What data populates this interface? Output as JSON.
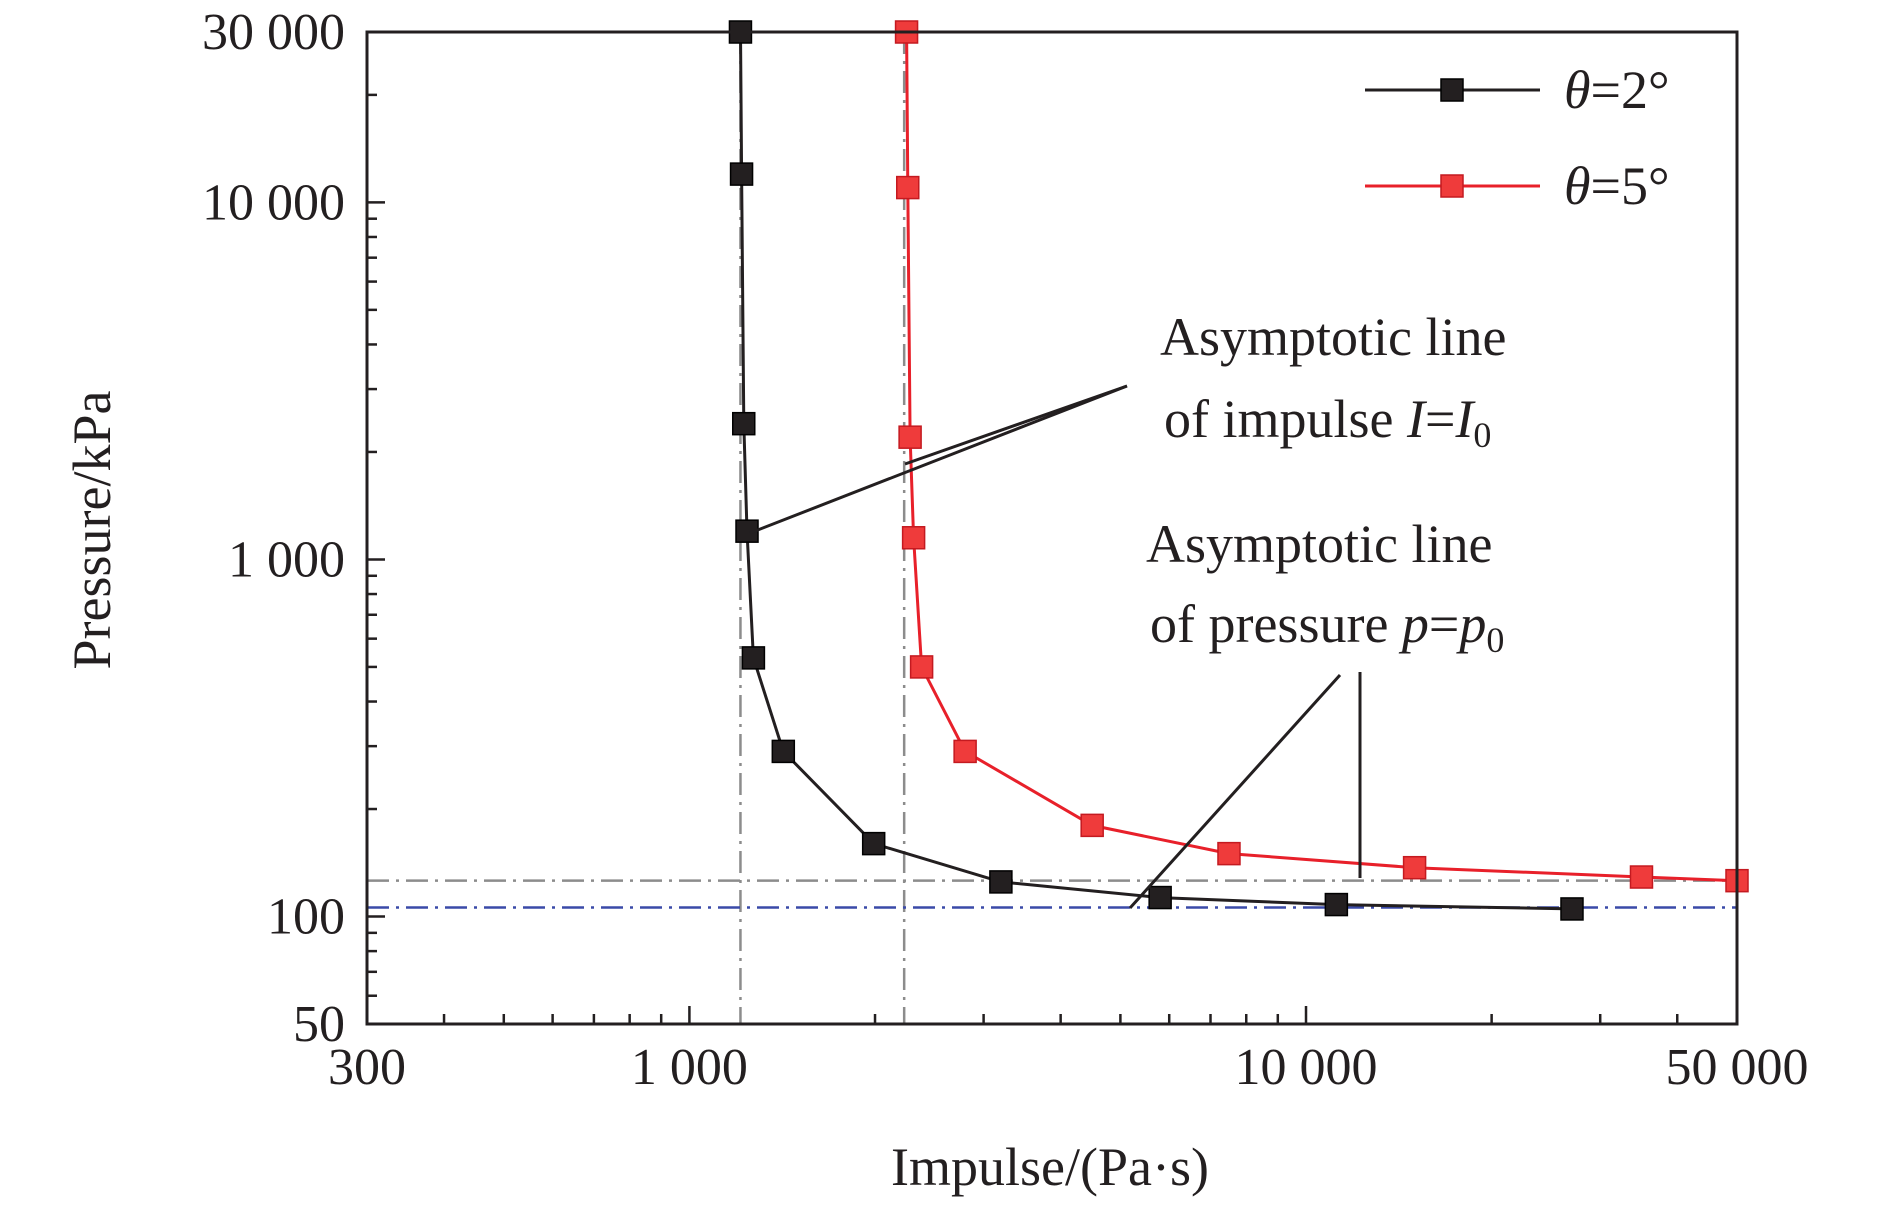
{
  "colors": {
    "series_theta2": "#231f20",
    "series_theta5": "#e8202a",
    "series_theta5_marker": "#ef3b3b",
    "asymptote_gray": "#8c8c8c",
    "asymptote_blue": "#3a4aa8",
    "axis": "#231f20"
  },
  "icons": {
    "legend_theta2": "black-square-marker-line",
    "legend_theta5": "red-square-marker-line"
  },
  "chart_data": {
    "type": "line",
    "title": "",
    "xlabel": "Impulse/(Pa·s)",
    "ylabel": "Pressure/kPa",
    "x_scale": "log",
    "y_scale": "log",
    "xlim": [
      300,
      50000
    ],
    "ylim": [
      50,
      30000
    ],
    "x_ticks": [
      300,
      1000,
      10000,
      50000
    ],
    "x_tick_labels": [
      "300",
      "1 000",
      "10 000",
      "50 000"
    ],
    "y_ticks": [
      50,
      100,
      1000,
      10000,
      30000
    ],
    "y_tick_labels": [
      "50",
      "100",
      "1 000",
      "10 000",
      "30 000"
    ],
    "grid": false,
    "legend_position": "top-right",
    "series": [
      {
        "name_prefix": "θ",
        "name_suffix": "=2°",
        "color": "#231f20",
        "marker": "square",
        "x": [
          1210,
          1215,
          1225,
          1240,
          1270,
          1420,
          1990,
          3200,
          5800,
          11200,
          27000
        ],
        "y": [
          30000,
          12000,
          2400,
          1200,
          530,
          290,
          160,
          125,
          113,
          108,
          105
        ]
      },
      {
        "name_prefix": "θ",
        "name_suffix": "=5°",
        "color": "#e8202a",
        "marker": "square",
        "x": [
          2250,
          2260,
          2280,
          2310,
          2380,
          2800,
          4500,
          7500,
          15000,
          35000,
          50000
        ],
        "y": [
          30000,
          11000,
          2200,
          1150,
          500,
          290,
          180,
          150,
          137,
          129,
          126
        ]
      }
    ],
    "asymptotes": {
      "vertical_x": [
        1210,
        2230
      ],
      "horizontal_y": [
        106,
        126
      ]
    },
    "annotations": [
      {
        "line1": "Asymptotic line",
        "line2_prefix": "of impulse ",
        "line2_var": "I",
        "line2_eq": "=",
        "line2_var2": "I",
        "line2_sub": "0"
      },
      {
        "line1": "Asymptotic line",
        "line2_prefix": "of pressure ",
        "line2_var": "p",
        "line2_eq": "=",
        "line2_var2": "p",
        "line2_sub": "0"
      }
    ]
  }
}
